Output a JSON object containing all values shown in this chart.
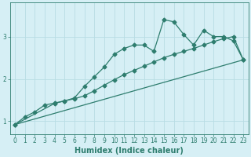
{
  "xlabel": "Humidex (Indice chaleur)",
  "bg_color": "#d6eff5",
  "grid_color": "#b8dce4",
  "line_color": "#2e7d6e",
  "xlim": [
    -0.5,
    23.5
  ],
  "ylim": [
    0.7,
    3.8
  ],
  "yticks": [
    1,
    2,
    3
  ],
  "xticks": [
    0,
    1,
    2,
    3,
    4,
    5,
    6,
    7,
    8,
    9,
    10,
    11,
    12,
    13,
    14,
    15,
    16,
    17,
    18,
    19,
    20,
    21,
    22,
    23
  ],
  "curve1_x": [
    0,
    1,
    2,
    3,
    4,
    5,
    6,
    7,
    8,
    9,
    10,
    11,
    12,
    13,
    14,
    15,
    16,
    17,
    18,
    19,
    20,
    21,
    22,
    23
  ],
  "curve1_y": [
    0.92,
    1.1,
    1.22,
    1.38,
    1.43,
    1.48,
    1.55,
    1.82,
    2.05,
    2.28,
    2.58,
    2.72,
    2.8,
    2.8,
    2.65,
    3.4,
    3.35,
    3.05,
    2.8,
    3.15,
    3.0,
    3.0,
    2.9,
    2.45
  ],
  "curve2_x": [
    0,
    4,
    5,
    6,
    7,
    8,
    9,
    10,
    11,
    12,
    13,
    14,
    15,
    16,
    17,
    18,
    19,
    20,
    21,
    22,
    23
  ],
  "curve2_y": [
    0.92,
    1.42,
    1.48,
    1.53,
    1.6,
    1.72,
    1.85,
    1.98,
    2.1,
    2.2,
    2.3,
    2.4,
    2.5,
    2.58,
    2.65,
    2.72,
    2.8,
    2.88,
    2.95,
    3.0,
    2.45
  ],
  "curve3_x": [
    0,
    23
  ],
  "curve3_y": [
    0.92,
    2.45
  ],
  "marker": "D",
  "markersize": 2.5,
  "linewidth": 0.9,
  "xlabel_fontsize": 7,
  "tick_fontsize": 5.5
}
